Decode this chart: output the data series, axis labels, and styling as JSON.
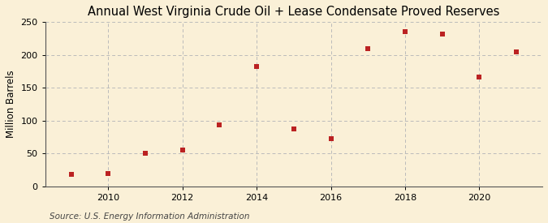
{
  "title": "Annual West Virginia Crude Oil + Lease Condensate Proved Reserves",
  "ylabel": "Million Barrels",
  "source": "Source: U.S. Energy Information Administration",
  "years": [
    2009,
    2010,
    2011,
    2012,
    2013,
    2014,
    2015,
    2016,
    2017,
    2018,
    2019,
    2020,
    2021
  ],
  "values": [
    18,
    20,
    50,
    55,
    93,
    183,
    87,
    72,
    210,
    235,
    232,
    167,
    205
  ],
  "ylim": [
    0,
    250
  ],
  "yticks": [
    0,
    50,
    100,
    150,
    200,
    250
  ],
  "xlim": [
    2008.3,
    2021.7
  ],
  "xticks": [
    2010,
    2012,
    2014,
    2016,
    2018,
    2020
  ],
  "marker_color": "#bb2222",
  "marker": "s",
  "marker_size": 22,
  "background_color": "#faf0d7",
  "grid_color": "#bbbbbb",
  "title_fontsize": 10.5,
  "label_fontsize": 8.5,
  "tick_fontsize": 8,
  "source_fontsize": 7.5
}
